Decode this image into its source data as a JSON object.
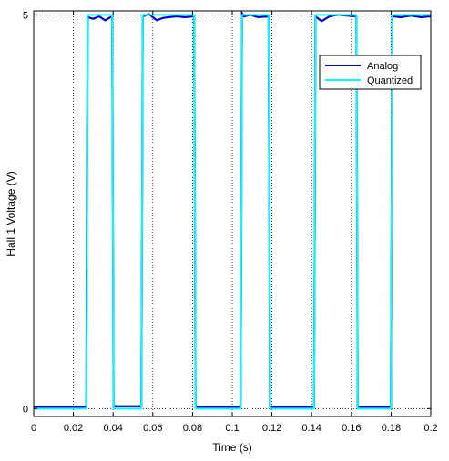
{
  "chart_data": {
    "type": "line",
    "title": "",
    "xlabel": "Time (s)",
    "ylabel": "Hall 1 Voltage (V)",
    "xlim": [
      0,
      0.2
    ],
    "ylim": [
      -0.1,
      5.05
    ],
    "x_ticks": [
      0,
      0.02,
      0.04,
      0.06,
      0.08,
      0.1,
      0.12,
      0.14,
      0.16,
      0.18,
      0.2
    ],
    "x_tick_labels": [
      "0",
      "0.02",
      "0.04",
      "0.06",
      "0.08",
      "0.1",
      "0.12",
      "0.14",
      "0.16",
      "0.18",
      "0.2"
    ],
    "y_ticks": [
      0,
      5
    ],
    "y_tick_labels": [
      "0",
      "5"
    ],
    "grid": true,
    "legend_position": "top-right",
    "series": [
      {
        "name": "Analog",
        "color": "#0000c8",
        "x": [
          0,
          0.0265,
          0.0268,
          0.0272,
          0.03,
          0.033,
          0.036,
          0.0395,
          0.0399,
          0.0402,
          0.053,
          0.0542,
          0.0546,
          0.0549,
          0.058,
          0.062,
          0.065,
          0.068,
          0.072,
          0.076,
          0.0808,
          0.0812,
          0.0815,
          0.103,
          0.1042,
          0.1046,
          0.1049,
          0.106,
          0.109,
          0.113,
          0.1183,
          0.1187,
          0.119,
          0.1405,
          0.1412,
          0.1416,
          0.1419,
          0.145,
          0.149,
          0.153,
          0.1625,
          0.1629,
          0.1632,
          0.1792,
          0.1799,
          0.1803,
          0.1806,
          0.185,
          0.19,
          0.195,
          0.2
        ],
        "y": [
          0.02,
          0.02,
          2.5,
          4.97,
          4.95,
          4.98,
          4.93,
          4.98,
          2.5,
          0.03,
          0.03,
          0.03,
          2.5,
          4.98,
          5.01,
          4.93,
          4.96,
          4.97,
          4.98,
          4.97,
          4.98,
          2.5,
          0.02,
          0.02,
          0.02,
          2.5,
          5.02,
          4.98,
          5.0,
          4.97,
          4.98,
          2.5,
          0.02,
          0.02,
          0.02,
          2.5,
          4.98,
          4.92,
          4.98,
          5.0,
          4.98,
          2.5,
          0.02,
          0.02,
          0.02,
          2.5,
          4.98,
          4.97,
          4.99,
          4.97,
          4.98
        ]
      },
      {
        "name": "Quantized",
        "color": "#00ffff",
        "x": [
          0,
          0.0265,
          0.0268,
          0.0272,
          0.0395,
          0.0399,
          0.0402,
          0.0542,
          0.0546,
          0.0549,
          0.0808,
          0.0812,
          0.0815,
          0.1042,
          0.1046,
          0.1049,
          0.1183,
          0.1187,
          0.119,
          0.1412,
          0.1416,
          0.1419,
          0.1625,
          0.1629,
          0.1632,
          0.1799,
          0.1803,
          0.1806,
          0.2
        ],
        "y": [
          0,
          0,
          1.7,
          5.0,
          5.0,
          2.5,
          0,
          0,
          2.5,
          5.0,
          5.0,
          2.5,
          0,
          0,
          2.5,
          5.0,
          5.0,
          2.5,
          0,
          0,
          2.5,
          5.0,
          5.0,
          2.5,
          0,
          0,
          2.5,
          5.0,
          5.0
        ]
      }
    ]
  }
}
